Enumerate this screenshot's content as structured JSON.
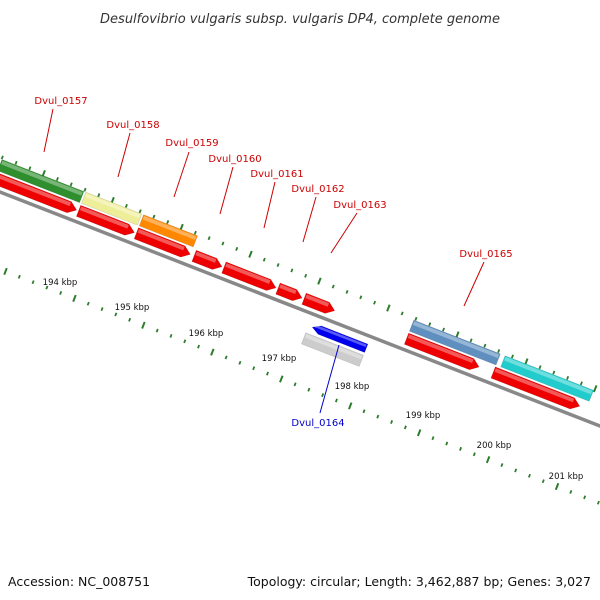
{
  "title": "Desulfovibrio vulgaris subsp. vulgaris DP4, complete genome",
  "footer": {
    "accession": "Accession: NC_008751",
    "topology": "Topology: circular; Length: 3,462,887 bp; Genes: 3,027"
  },
  "colors": {
    "backbone": "#888888",
    "tick": "#2e7d2e",
    "cds_red": "#ee0000",
    "label_red": "#cc0000",
    "label_blue": "#0000cc",
    "green": "#2f8f2f",
    "yellow": "#eeee99",
    "orange": "#ff8800",
    "steelblue": "#5f8fbf",
    "cyan": "#22cccc",
    "blue": "#0000ee",
    "grey": "#cccccc"
  },
  "kbp_labels": [
    "194 kbp",
    "195 kbp",
    "196 kbp",
    "197 kbp",
    "198 kbp",
    "199 kbp",
    "200 kbp",
    "201 kbp"
  ],
  "genes": [
    {
      "label": "Dvul_0157",
      "strand": "plus"
    },
    {
      "label": "Dvul_0158",
      "strand": "plus"
    },
    {
      "label": "Dvul_0159",
      "strand": "plus"
    },
    {
      "label": "Dvul_0160",
      "strand": "plus"
    },
    {
      "label": "Dvul_0161",
      "strand": "plus"
    },
    {
      "label": "Dvul_0162",
      "strand": "plus"
    },
    {
      "label": "Dvul_0163",
      "strand": "plus"
    },
    {
      "label": "Dvul_0164",
      "strand": "minus"
    },
    {
      "label": "Dvul_0165",
      "strand": "plus"
    }
  ]
}
